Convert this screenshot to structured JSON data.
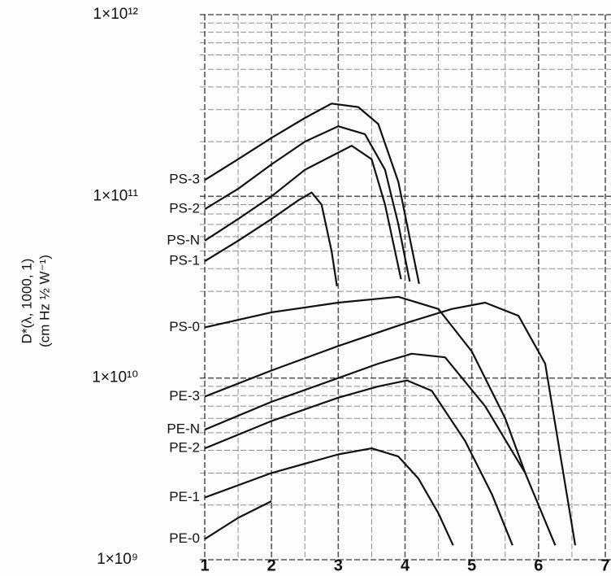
{
  "chart_data": {
    "type": "line",
    "log_y": true,
    "grid": true,
    "minor_grid": true,
    "color": "#111111",
    "ylabel": "D*(λ, 1000, 1)",
    "ylabel_units": "(cm Hz ½ W⁻¹)",
    "xlim": [
      1,
      7
    ],
    "xticks": [
      1,
      2,
      3,
      4,
      5,
      6,
      7
    ],
    "ylim": [
      1000000000,
      1000000000000
    ],
    "yticks": [
      {
        "value": 1000000000,
        "label": "1×10⁹"
      },
      {
        "value": 10000000000,
        "label": "1×10¹⁰"
      },
      {
        "value": 100000000000,
        "label": "1×10¹¹"
      },
      {
        "value": 1000000000000,
        "label": "1×10¹²"
      }
    ],
    "series": [
      {
        "name": "PS-3",
        "x": [
          1,
          1.5,
          2,
          2.5,
          2.9,
          3.3,
          3.6,
          3.9,
          4.21
        ],
        "values": [
          123000000000,
          160000000000,
          210000000000,
          270000000000,
          324000000000,
          310000000000,
          250000000000,
          120000000000,
          33000000000
        ]
      },
      {
        "name": "PS-2",
        "x": [
          1,
          1.5,
          2,
          2.5,
          3,
          3.4,
          3.7,
          3.9,
          4.07
        ],
        "values": [
          85000000000,
          110000000000,
          150000000000,
          200000000000,
          243000000000,
          220000000000,
          140000000000,
          70000000000,
          34000000000
        ]
      },
      {
        "name": "PS-N",
        "x": [
          1,
          1.5,
          2,
          2.5,
          3.2,
          3.5,
          3.7,
          3.94
        ],
        "values": [
          57000000000,
          75000000000,
          100000000000,
          140000000000,
          190000000000,
          160000000000,
          90000000000,
          35000000000
        ]
      },
      {
        "name": "PS-1",
        "x": [
          1,
          1.5,
          2,
          2.4,
          2.6,
          2.75,
          2.9,
          2.98
        ],
        "values": [
          44000000000,
          57000000000,
          75000000000,
          95000000000,
          105000000000,
          90000000000,
          50000000000,
          32000000000
        ]
      },
      {
        "name": "PS-0",
        "x": [
          1,
          2,
          3,
          3.9,
          4.5,
          5,
          5.5,
          5.8
        ],
        "values": [
          19000000000,
          23000000000,
          26000000000,
          28000000000,
          24000000000,
          14000000000,
          6000000000,
          3000000000
        ]
      },
      {
        "name": "PE-3",
        "x": [
          1,
          2,
          3,
          4,
          4.7,
          5.2,
          5.7,
          6.1,
          6.55
        ],
        "values": [
          7900000000,
          11000000000,
          15000000000,
          20000000000,
          24000000000,
          26000000000,
          22000000000,
          12000000000,
          1200000000
        ]
      },
      {
        "name": "PE-N",
        "x": [
          1,
          2,
          3,
          3.6,
          4.1,
          4.6,
          5.2,
          5.8,
          6.25
        ],
        "values": [
          5200000000,
          7400000000,
          10000000000,
          12000000000,
          13600000000,
          13000000000,
          7000000000,
          3000000000,
          1200000000
        ]
      },
      {
        "name": "PE-2",
        "x": [
          1,
          2,
          3,
          3.6,
          4.03,
          4.4,
          4.9,
          5.3,
          5.61
        ],
        "values": [
          4100000000,
          5800000000,
          7800000000,
          9000000000,
          9700000000,
          8500000000,
          4500000000,
          2300000000,
          1200000000
        ]
      },
      {
        "name": "PE-1",
        "x": [
          1,
          2,
          3,
          3.5,
          3.9,
          4.2,
          4.5,
          4.72
        ],
        "values": [
          2200000000,
          3000000000,
          3800000000,
          4100000000,
          3700000000,
          2800000000,
          1800000000,
          1200000000
        ]
      },
      {
        "name": "PE-0",
        "x": [
          1,
          1.5,
          2
        ],
        "values": [
          1300000000,
          1700000000,
          2100000000
        ]
      }
    ]
  }
}
